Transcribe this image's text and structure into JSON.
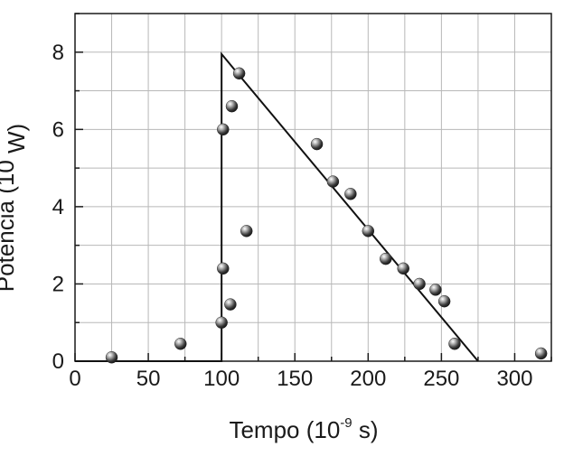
{
  "chart_data": {
    "type": "scatter",
    "title": "",
    "xlabel": {
      "prefix": "Tempo (10",
      "exponent": "-9",
      "suffix": " s)"
    },
    "ylabel": {
      "prefix": "Potencia (10",
      "exponent": "",
      "suffix": " W)"
    },
    "xlim": [
      0,
      325
    ],
    "ylim": [
      0,
      9
    ],
    "xticks": [
      0,
      50,
      100,
      150,
      200,
      250,
      300
    ],
    "yticks": [
      0,
      2,
      4,
      6,
      8
    ],
    "grid": true,
    "legend": "none",
    "colors": {
      "marker": "#3a3a3a",
      "line": "#111111",
      "grid": "#b8b8b8"
    },
    "series": [
      {
        "kind": "points",
        "x": [
          25,
          72,
          100,
          101,
          101,
          106,
          107,
          112,
          117,
          165,
          176,
          188,
          200,
          212,
          224,
          235,
          246,
          252,
          259,
          318
        ],
        "y": [
          0.1,
          0.45,
          1.0,
          2.4,
          6.0,
          1.47,
          6.6,
          7.45,
          3.37,
          5.62,
          4.65,
          4.33,
          3.37,
          2.65,
          2.4,
          2.0,
          1.85,
          1.55,
          0.45,
          0.2
        ]
      },
      {
        "kind": "line",
        "x": [
          0,
          100,
          100,
          275
        ],
        "y": [
          0,
          0,
          7.95,
          0
        ]
      }
    ]
  }
}
